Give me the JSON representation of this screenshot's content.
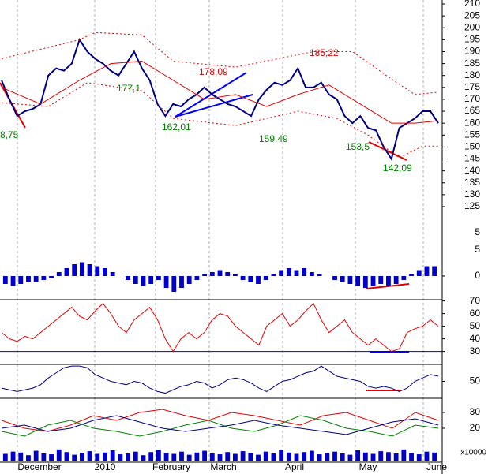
{
  "x_labels": [
    "December",
    "2010",
    "February",
    "March",
    "April",
    "May",
    "June"
  ],
  "chart_data": [
    {
      "type": "line",
      "ylim": [
        125,
        210
      ],
      "yticks": [
        210,
        205,
        200,
        195,
        190,
        185,
        180,
        175,
        170,
        165,
        160,
        155,
        150,
        145,
        140,
        135,
        130,
        125
      ],
      "series": [
        {
          "color": "#000080",
          "width": 2,
          "values": [
            178,
            170,
            163,
            165,
            166,
            168,
            180,
            183,
            182,
            185,
            195,
            190,
            187,
            185,
            182,
            180,
            185,
            190,
            183,
            178,
            168,
            163,
            168,
            167,
            170,
            172,
            175,
            172,
            170,
            168,
            167,
            165,
            163,
            170,
            174,
            177,
            176,
            178,
            183,
            175,
            175,
            177,
            172,
            170,
            163,
            160,
            163,
            158,
            157,
            150,
            145,
            158,
            160,
            162,
            165,
            165,
            160
          ]
        },
        {
          "color": "#e00000",
          "width": 1,
          "x": [
            0,
            5,
            10,
            14,
            18,
            22,
            26,
            30,
            34,
            38,
            42,
            46,
            50,
            53,
            56
          ],
          "values": [
            175,
            168,
            178,
            185,
            186,
            178,
            170,
            172,
            167,
            172,
            176,
            168,
            160,
            160,
            161
          ]
        },
        {
          "color": "#e00000",
          "width": 1,
          "dashed": true,
          "x": [
            0,
            10,
            12,
            18,
            22,
            30,
            40,
            45,
            50,
            53,
            56
          ],
          "values": [
            187,
            195,
            198,
            197,
            186,
            183.5,
            190,
            190,
            178.5,
            172,
            173
          ]
        },
        {
          "color": "#e00000",
          "width": 1,
          "dashed": true,
          "x": [
            0,
            6,
            11,
            18,
            22,
            30,
            38,
            43,
            47,
            51,
            54,
            56
          ],
          "values": [
            168.6,
            167,
            177,
            173.6,
            162,
            159,
            165,
            162,
            155,
            145.5,
            150.4,
            150.4
          ]
        }
      ],
      "annotations": [
        {
          "text": "8,75",
          "color": "#008000"
        },
        {
          "text": "177,1",
          "color": "#008000"
        },
        {
          "text": "178,09",
          "color": "#e00000"
        },
        {
          "text": "162,01",
          "color": "#008000"
        },
        {
          "text": "159,49",
          "color": "#008000"
        },
        {
          "text": "185,22",
          "color": "#e00000"
        },
        {
          "text": "153,5",
          "color": "#008000"
        },
        {
          "text": "142,09",
          "color": "#008000"
        }
      ]
    },
    {
      "type": "bar",
      "ylim": [
        -6,
        10
      ],
      "yticks": [
        0
      ],
      "extra_labels": [
        "5",
        "5"
      ],
      "color": "#0000cc",
      "values": [
        -2,
        -2.5,
        -2,
        -1.5,
        -1.5,
        -1,
        -0.5,
        1,
        2,
        3,
        3.5,
        3,
        2.5,
        2,
        1,
        0,
        -1,
        -2,
        -2.5,
        -2,
        -1,
        -3,
        -4,
        -3,
        -2,
        -1,
        0.5,
        1,
        1.5,
        1,
        0.5,
        -1,
        -1.5,
        -2,
        -1,
        0.5,
        1.5,
        2,
        1.5,
        2,
        1,
        0.5,
        0,
        -1,
        -1.5,
        -2,
        -2.5,
        -3,
        -2.5,
        -2,
        -2.5,
        -2,
        -1,
        0.5,
        1.5,
        2.5,
        2.5
      ]
    },
    {
      "type": "line",
      "ylim": [
        21,
        71
      ],
      "yticks": [
        70,
        60,
        50,
        40,
        30
      ],
      "reference_lines": [
        30
      ],
      "reference_color": "#0000cc",
      "series": [
        {
          "color": "#e00000",
          "width": 1,
          "values": [
            45,
            40,
            38,
            42,
            40,
            45,
            50,
            55,
            60,
            65,
            58,
            55,
            62,
            68,
            60,
            50,
            45,
            55,
            60,
            65,
            55,
            40,
            30,
            40,
            45,
            40,
            45,
            55,
            60,
            58,
            50,
            45,
            40,
            35,
            50,
            55,
            60,
            50,
            55,
            62,
            68,
            55,
            45,
            50,
            55,
            45,
            40,
            35,
            40,
            35,
            30,
            32,
            45,
            48,
            50,
            55,
            50
          ]
        }
      ]
    },
    {
      "type": "line",
      "ylim": [
        0,
        100
      ],
      "yticks": [
        50
      ],
      "series": [
        {
          "color": "#000080",
          "width": 1,
          "values": [
            30,
            25,
            20,
            25,
            30,
            40,
            60,
            75,
            90,
            95,
            95,
            90,
            70,
            60,
            50,
            45,
            40,
            50,
            45,
            30,
            20,
            15,
            25,
            35,
            40,
            50,
            45,
            30,
            40,
            55,
            60,
            55,
            45,
            30,
            20,
            35,
            50,
            55,
            65,
            75,
            80,
            95,
            80,
            65,
            60,
            55,
            50,
            35,
            30,
            35,
            30,
            20,
            30,
            50,
            60,
            70,
            65
          ]
        }
      ]
    },
    {
      "type": "line",
      "ylim": [
        9,
        39
      ],
      "yticks": [
        30,
        20
      ],
      "series": [
        {
          "color": "#e00000",
          "width": 1,
          "values": [
            25,
            20,
            18,
            22,
            28,
            25,
            30,
            32,
            28,
            25,
            30,
            28,
            25,
            22,
            28,
            30,
            25,
            20,
            30,
            25
          ]
        },
        {
          "color": "#008000",
          "width": 1,
          "values": [
            18,
            15,
            22,
            25,
            20,
            18,
            15,
            18,
            22,
            25,
            20,
            18,
            22,
            28,
            25,
            20,
            18,
            15,
            22,
            20
          ]
        },
        {
          "color": "#000080",
          "width": 1,
          "values": [
            20,
            22,
            18,
            20,
            25,
            28,
            24,
            20,
            18,
            20,
            22,
            25,
            22,
            20,
            18,
            16,
            20,
            24,
            26,
            22
          ]
        }
      ]
    },
    {
      "type": "bar",
      "ylim": [
        0,
        3
      ],
      "yticks": [],
      "unit_label": "x10000",
      "color": "#0000cc",
      "values": [
        1.5,
        2.0,
        1.8,
        1.2,
        2.2,
        1.6,
        1.4,
        2.5,
        1.9,
        1.3,
        1.7,
        2.1,
        1.5,
        1.8,
        2.3,
        1.4,
        1.6,
        2.0,
        1.2,
        1.9,
        2.4,
        1.7,
        1.5,
        2.0,
        1.3,
        1.8,
        2.2,
        1.6,
        1.4,
        1.9,
        1.5,
        2.1,
        1.7,
        1.3,
        2.0,
        1.6,
        2.4,
        1.8,
        1.5,
        1.9,
        2.2,
        1.4,
        1.7,
        2.0,
        1.6,
        1.3,
        2.3,
        1.8,
        1.5,
        2.1,
        1.9,
        1.6,
        2.5,
        1.7,
        1.4,
        2.0,
        1.8
      ]
    }
  ]
}
